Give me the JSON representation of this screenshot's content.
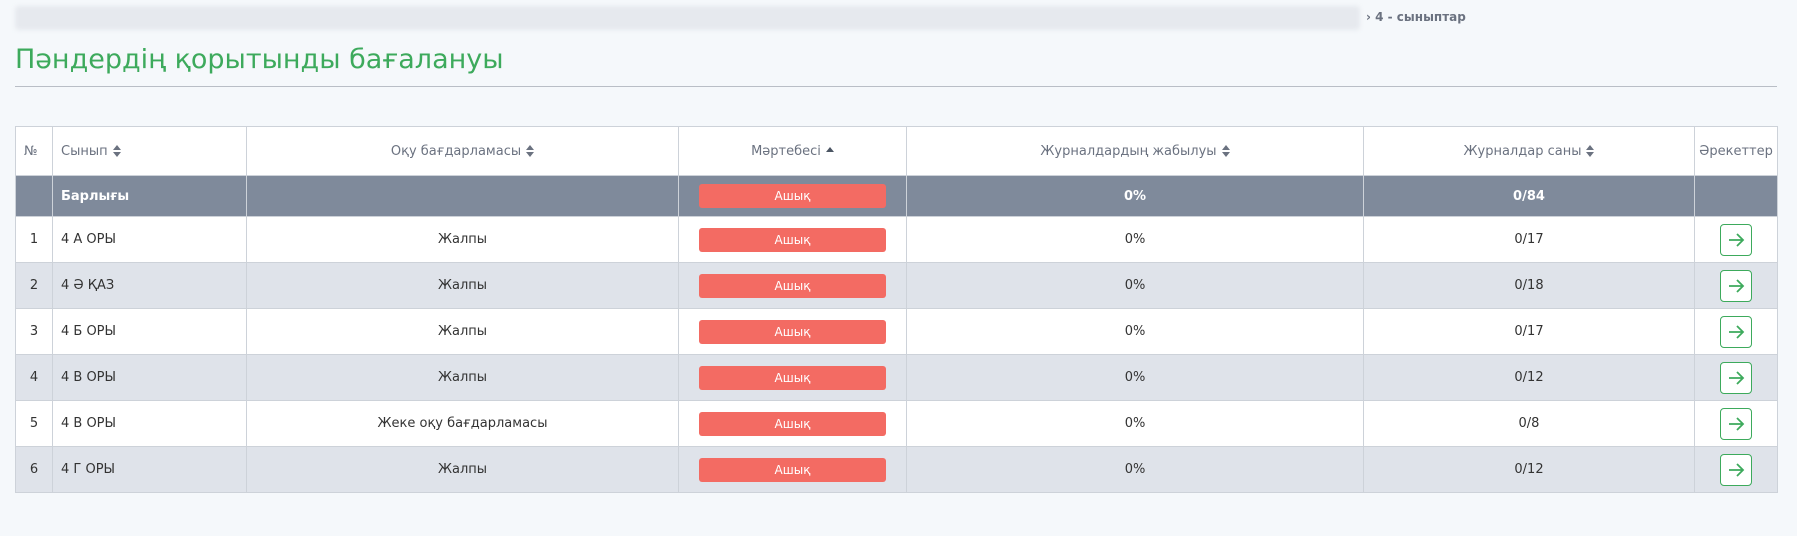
{
  "breadcrumb": {
    "current": "4 - сыныптар"
  },
  "title": "Пәндердің қорытынды бағалануы",
  "table": {
    "headers": [
      "№",
      "Сынып",
      "Оқу бағдарламасы",
      "Мәртебесі",
      "Журналдардың жабылуы",
      "Журналдар саны",
      "Әрекеттер"
    ],
    "total": {
      "label": "Барлығы",
      "status": "Ашық",
      "closed": "0%",
      "count": "0/84"
    },
    "rows": [
      [
        "1",
        "4 А ОРЫ",
        "Жалпы",
        "Ашық",
        "0%",
        "0/17"
      ],
      [
        "2",
        "4 Ә ҚАЗ",
        "Жалпы",
        "Ашық",
        "0%",
        "0/18"
      ],
      [
        "3",
        "4 Б ОРЫ",
        "Жалпы",
        "Ашық",
        "0%",
        "0/17"
      ],
      [
        "4",
        "4 В ОРЫ",
        "Жалпы",
        "Ашық",
        "0%",
        "0/12"
      ],
      [
        "5",
        "4 В ОРЫ",
        "Жеке оқу бағдарламасы",
        "Ашық",
        "0%",
        "0/8"
      ],
      [
        "6",
        "4 Г ОРЫ",
        "Жалпы",
        "Ашық",
        "0%",
        "0/12"
      ]
    ]
  }
}
